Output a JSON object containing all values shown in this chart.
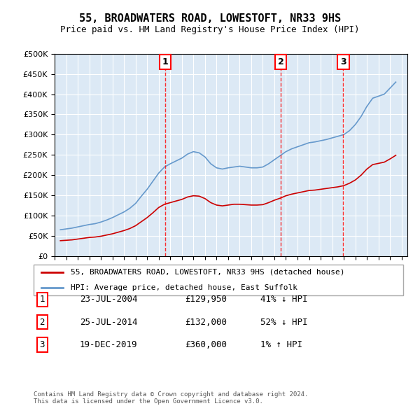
{
  "title": "55, BROADWATERS ROAD, LOWESTOFT, NR33 9HS",
  "subtitle": "Price paid vs. HM Land Registry's House Price Index (HPI)",
  "ylabel_ticks": [
    "£0",
    "£50K",
    "£100K",
    "£150K",
    "£200K",
    "£250K",
    "£300K",
    "£350K",
    "£400K",
    "£450K",
    "£500K"
  ],
  "ytick_values": [
    0,
    50000,
    100000,
    150000,
    200000,
    250000,
    300000,
    350000,
    400000,
    450000,
    500000
  ],
  "ylim": [
    0,
    500000
  ],
  "xlim_start": 1995.0,
  "xlim_end": 2025.5,
  "background_color": "#dce9f5",
  "plot_bg_color": "#dce9f5",
  "legend_entry1": "55, BROADWATERS ROAD, LOWESTOFT, NR33 9HS (detached house)",
  "legend_entry2": "HPI: Average price, detached house, East Suffolk",
  "footer": "Contains HM Land Registry data © Crown copyright and database right 2024.\nThis data is licensed under the Open Government Licence v3.0.",
  "sales": [
    {
      "num": 1,
      "date": "23-JUL-2004",
      "price": 129950,
      "pct": "41% ↓ HPI",
      "x": 2004.55
    },
    {
      "num": 2,
      "date": "25-JUL-2014",
      "price": 132000,
      "pct": "52% ↓ HPI",
      "x": 2014.55
    },
    {
      "num": 3,
      "date": "19-DEC-2019",
      "price": 360000,
      "pct": "1% ↑ HPI",
      "x": 2019.96
    }
  ],
  "hpi_years": [
    1995.5,
    1996.0,
    1996.5,
    1997.0,
    1997.5,
    1998.0,
    1998.5,
    1999.0,
    1999.5,
    2000.0,
    2000.5,
    2001.0,
    2001.5,
    2002.0,
    2002.5,
    2003.0,
    2003.5,
    2004.0,
    2004.5,
    2005.0,
    2005.5,
    2006.0,
    2006.5,
    2007.0,
    2007.5,
    2008.0,
    2008.5,
    2009.0,
    2009.5,
    2010.0,
    2010.5,
    2011.0,
    2011.5,
    2012.0,
    2012.5,
    2013.0,
    2013.5,
    2014.0,
    2014.5,
    2015.0,
    2015.5,
    2016.0,
    2016.5,
    2017.0,
    2017.5,
    2018.0,
    2018.5,
    2019.0,
    2019.5,
    2020.0,
    2020.5,
    2021.0,
    2021.5,
    2022.0,
    2022.5,
    2023.0,
    2023.5,
    2024.0,
    2024.5
  ],
  "hpi_values": [
    65000,
    67000,
    69000,
    72000,
    75000,
    78000,
    80000,
    84000,
    89000,
    95000,
    102000,
    109000,
    118000,
    130000,
    148000,
    165000,
    185000,
    205000,
    220000,
    228000,
    235000,
    242000,
    252000,
    258000,
    255000,
    245000,
    228000,
    218000,
    215000,
    218000,
    220000,
    222000,
    220000,
    218000,
    218000,
    220000,
    228000,
    238000,
    248000,
    258000,
    265000,
    270000,
    275000,
    280000,
    282000,
    285000,
    288000,
    292000,
    296000,
    300000,
    310000,
    325000,
    345000,
    370000,
    390000,
    395000,
    400000,
    415000,
    430000
  ],
  "price_years": [
    1995.5,
    1996.0,
    1996.5,
    1997.0,
    1997.5,
    1998.0,
    1998.5,
    1999.0,
    1999.5,
    2000.0,
    2000.5,
    2001.0,
    2001.5,
    2002.0,
    2002.5,
    2003.0,
    2003.5,
    2004.0,
    2004.5,
    2005.0,
    2005.5,
    2006.0,
    2006.5,
    2007.0,
    2007.5,
    2008.0,
    2008.5,
    2009.0,
    2009.5,
    2010.0,
    2010.5,
    2011.0,
    2011.5,
    2012.0,
    2012.5,
    2013.0,
    2013.5,
    2014.0,
    2014.5,
    2015.0,
    2015.5,
    2016.0,
    2016.5,
    2017.0,
    2017.5,
    2018.0,
    2018.5,
    2019.0,
    2019.5,
    2020.0,
    2020.5,
    2021.0,
    2021.5,
    2022.0,
    2022.5,
    2023.0,
    2023.5,
    2024.0,
    2024.5
  ],
  "price_values": [
    38000,
    39000,
    40000,
    42000,
    44000,
    46000,
    47000,
    49000,
    52000,
    55000,
    59000,
    63000,
    68000,
    75000,
    85000,
    95000,
    107000,
    120000,
    128000,
    132000,
    136000,
    140000,
    146000,
    149000,
    148000,
    142000,
    132000,
    126000,
    124000,
    126000,
    128000,
    128000,
    127000,
    126000,
    126000,
    127000,
    132000,
    138000,
    143000,
    149000,
    153000,
    156000,
    159000,
    162000,
    163000,
    165000,
    167000,
    169000,
    171000,
    174000,
    180000,
    188000,
    200000,
    215000,
    226000,
    229000,
    232000,
    240000,
    249000
  ]
}
